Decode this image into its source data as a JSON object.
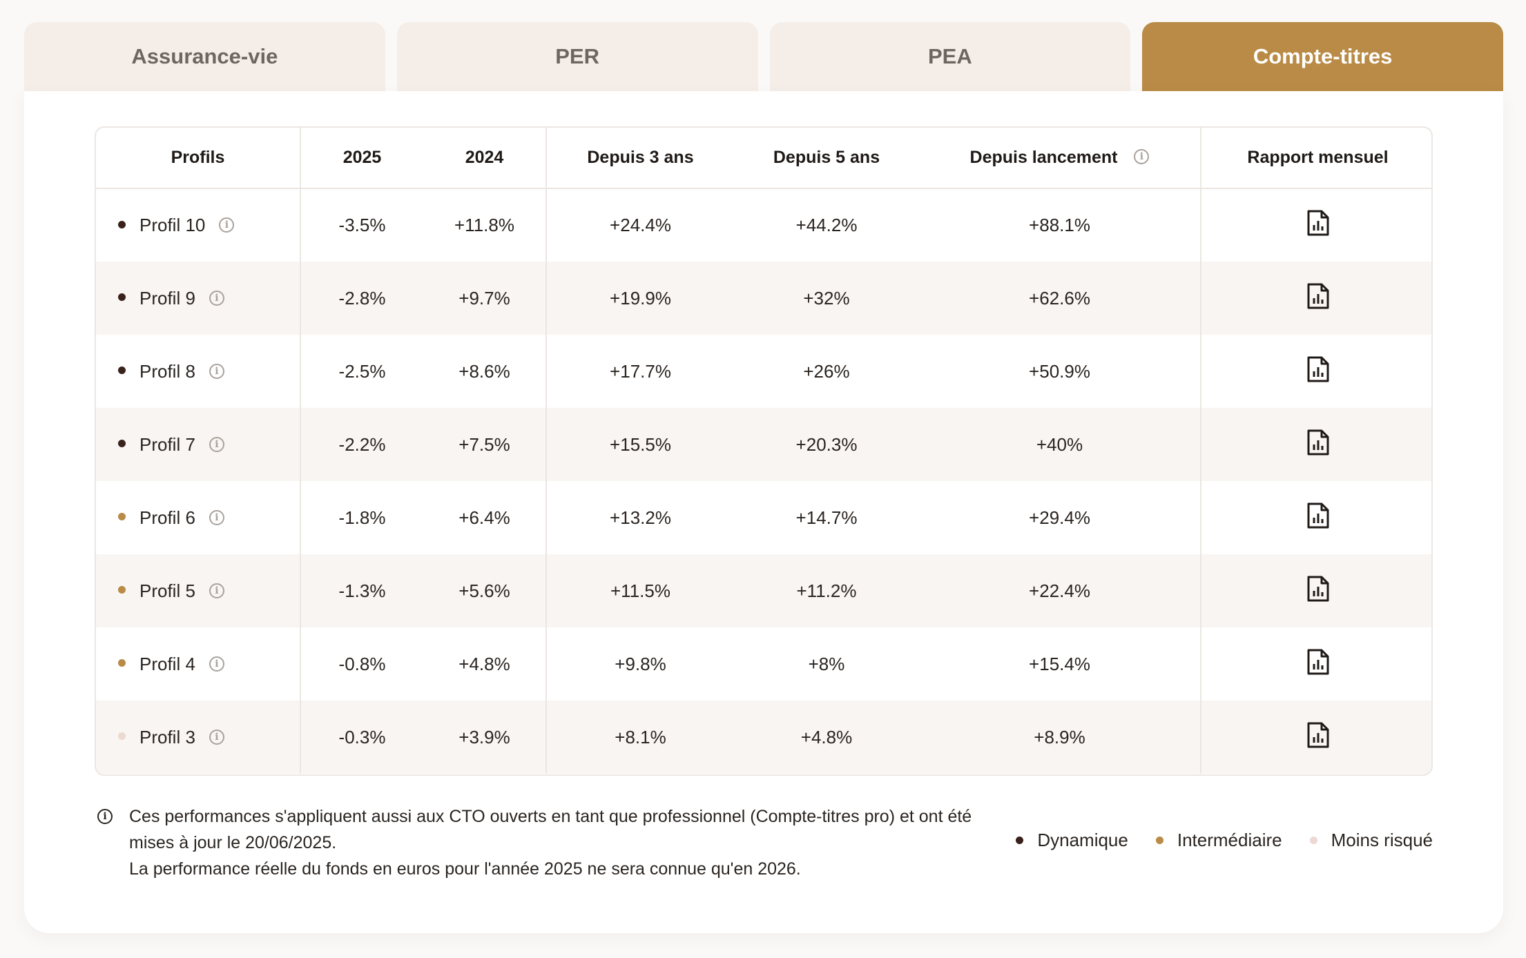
{
  "tabs": [
    {
      "label": "Assurance-vie",
      "active": false
    },
    {
      "label": "PER",
      "active": false
    },
    {
      "label": "PEA",
      "active": false
    },
    {
      "label": "Compte-titres",
      "active": true
    }
  ],
  "table": {
    "headers": {
      "profils": "Profils",
      "y2025": "2025",
      "y2024": "2024",
      "since3": "Depuis 3 ans",
      "since5": "Depuis 5 ans",
      "launch": "Depuis lancement",
      "report": "Rapport mensuel"
    },
    "rows": [
      {
        "profile": "Profil 10",
        "category": "Dynamique",
        "y2025": "-3.5%",
        "y2024": "+11.8%",
        "since3": "+24.4%",
        "since5": "+44.2%",
        "launch": "+88.1%"
      },
      {
        "profile": "Profil 9",
        "category": "Dynamique",
        "y2025": "-2.8%",
        "y2024": "+9.7%",
        "since3": "+19.9%",
        "since5": "+32%",
        "launch": "+62.6%"
      },
      {
        "profile": "Profil 8",
        "category": "Dynamique",
        "y2025": "-2.5%",
        "y2024": "+8.6%",
        "since3": "+17.7%",
        "since5": "+26%",
        "launch": "+50.9%"
      },
      {
        "profile": "Profil 7",
        "category": "Dynamique",
        "y2025": "-2.2%",
        "y2024": "+7.5%",
        "since3": "+15.5%",
        "since5": "+20.3%",
        "launch": "+40%"
      },
      {
        "profile": "Profil 6",
        "category": "Intermédiaire",
        "y2025": "-1.8%",
        "y2024": "+6.4%",
        "since3": "+13.2%",
        "since5": "+14.7%",
        "launch": "+29.4%"
      },
      {
        "profile": "Profil 5",
        "category": "Intermédiaire",
        "y2025": "-1.3%",
        "y2024": "+5.6%",
        "since3": "+11.5%",
        "since5": "+11.2%",
        "launch": "+22.4%"
      },
      {
        "profile": "Profil 4",
        "category": "Intermédiaire",
        "y2025": "-0.8%",
        "y2024": "+4.8%",
        "since3": "+9.8%",
        "since5": "+8%",
        "launch": "+15.4%"
      },
      {
        "profile": "Profil 3",
        "category": "Moins risqué",
        "y2025": "-0.3%",
        "y2024": "+3.9%",
        "since3": "+8.1%",
        "since5": "+4.8%",
        "launch": "+8.9%"
      }
    ]
  },
  "footnote": {
    "line1": "Ces performances s'appliquent aussi aux CTO ouverts en tant que professionnel (Compte-titres pro) et ont été mises à jour le 20/06/2025.",
    "line2": "La performance réelle du fonds en euros pour l'année 2025 ne sera connue qu'en 2026."
  },
  "legend": [
    {
      "label": "Dynamique",
      "color": "#3a211b"
    },
    {
      "label": "Intermédiaire",
      "color": "#b98b46"
    },
    {
      "label": "Moins risqué",
      "color": "#ecd9d2"
    }
  ],
  "icons": {
    "info": "info-circle-icon",
    "report": "chart-document-icon"
  },
  "colors": {
    "accent": "#b98b46",
    "tab_inactive": "#f5eee8"
  }
}
